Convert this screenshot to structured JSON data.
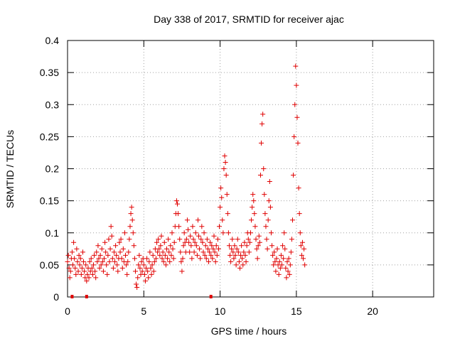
{
  "chart_data": {
    "type": "scatter",
    "title": "Day 338 of 2017, SRMTID for receiver ajac",
    "xlabel": "GPS time / hours",
    "ylabel": "SRMTID / TECUs",
    "xlim": [
      0,
      24
    ],
    "ylim": [
      0,
      0.4
    ],
    "x_ticks": [
      0,
      5,
      10,
      15,
      20
    ],
    "x_tick_labels": [
      "0",
      "5",
      "10",
      "15",
      "20"
    ],
    "y_ticks": [
      0,
      0.05,
      0.1,
      0.15,
      0.2,
      0.25,
      0.3,
      0.35,
      0.4
    ],
    "y_tick_labels": [
      "0",
      "0.05",
      "0.1",
      "0.15",
      "0.2",
      "0.25",
      "0.3",
      "0.35",
      "0.4"
    ],
    "grid": true,
    "marker": "plus",
    "color": "#e00000",
    "series": [
      {
        "name": "SRMTID",
        "points": [
          [
            0.0,
            0.055
          ],
          [
            0.05,
            0.065
          ],
          [
            0.1,
            0.045
          ],
          [
            0.15,
            0.03
          ],
          [
            0.2,
            0.04
          ],
          [
            0.25,
            0.06
          ],
          [
            0.3,
            0.07
          ],
          [
            0.35,
            0.05
          ],
          [
            0.4,
            0.085
          ],
          [
            0.45,
            0.06
          ],
          [
            0.5,
            0.045
          ],
          [
            0.55,
            0.035
          ],
          [
            0.6,
            0.075
          ],
          [
            0.65,
            0.055
          ],
          [
            0.7,
            0.04
          ],
          [
            0.75,
            0.065
          ],
          [
            0.8,
            0.05
          ],
          [
            0.85,
            0.06
          ],
          [
            0.9,
            0.035
          ],
          [
            0.95,
            0.045
          ],
          [
            1.0,
            0.07
          ],
          [
            1.05,
            0.055
          ],
          [
            1.1,
            0.04
          ],
          [
            1.15,
            0.03
          ],
          [
            1.2,
            0.05
          ],
          [
            1.25,
            0.025
          ],
          [
            1.3,
            0.035
          ],
          [
            1.35,
            0.045
          ],
          [
            1.4,
            0.03
          ],
          [
            1.45,
            0.055
          ],
          [
            1.5,
            0.04
          ],
          [
            1.55,
            0.06
          ],
          [
            1.6,
            0.045
          ],
          [
            1.65,
            0.035
          ],
          [
            1.7,
            0.05
          ],
          [
            1.75,
            0.065
          ],
          [
            1.8,
            0.04
          ],
          [
            1.85,
            0.03
          ],
          [
            1.9,
            0.07
          ],
          [
            1.95,
            0.055
          ],
          [
            2.0,
            0.08
          ],
          [
            2.05,
            0.06
          ],
          [
            2.1,
            0.045
          ],
          [
            2.15,
            0.065
          ],
          [
            2.2,
            0.05
          ],
          [
            2.25,
            0.075
          ],
          [
            2.3,
            0.055
          ],
          [
            2.35,
            0.04
          ],
          [
            2.4,
            0.06
          ],
          [
            2.45,
            0.085
          ],
          [
            2.5,
            0.07
          ],
          [
            2.55,
            0.05
          ],
          [
            2.6,
            0.035
          ],
          [
            2.65,
            0.065
          ],
          [
            2.7,
            0.09
          ],
          [
            2.75,
            0.055
          ],
          [
            2.8,
            0.075
          ],
          [
            2.85,
            0.11
          ],
          [
            2.9,
            0.095
          ],
          [
            2.95,
            0.06
          ],
          [
            3.0,
            0.045
          ],
          [
            3.05,
            0.07
          ],
          [
            3.1,
            0.055
          ],
          [
            3.15,
            0.08
          ],
          [
            3.2,
            0.065
          ],
          [
            3.25,
            0.05
          ],
          [
            3.3,
            0.04
          ],
          [
            3.35,
            0.06
          ],
          [
            3.4,
            0.085
          ],
          [
            3.45,
            0.07
          ],
          [
            3.5,
            0.09
          ],
          [
            3.55,
            0.06
          ],
          [
            3.6,
            0.045
          ],
          [
            3.65,
            0.075
          ],
          [
            3.7,
            0.055
          ],
          [
            3.75,
            0.1
          ],
          [
            3.8,
            0.065
          ],
          [
            3.85,
            0.05
          ],
          [
            3.9,
            0.035
          ],
          [
            3.95,
            0.055
          ],
          [
            4.0,
            0.07
          ],
          [
            4.05,
            0.09
          ],
          [
            4.1,
            0.11
          ],
          [
            4.15,
            0.13
          ],
          [
            4.2,
            0.14
          ],
          [
            4.25,
            0.12
          ],
          [
            4.3,
            0.1
          ],
          [
            4.35,
            0.08
          ],
          [
            4.4,
            0.06
          ],
          [
            4.45,
            0.04
          ],
          [
            4.5,
            0.02
          ],
          [
            4.55,
            0.015
          ],
          [
            4.6,
            0.03
          ],
          [
            4.65,
            0.05
          ],
          [
            4.7,
            0.065
          ],
          [
            4.75,
            0.045
          ],
          [
            4.8,
            0.035
          ],
          [
            4.85,
            0.055
          ],
          [
            4.9,
            0.04
          ],
          [
            4.95,
            0.06
          ],
          [
            5.0,
            0.05
          ],
          [
            5.05,
            0.035
          ],
          [
            5.1,
            0.025
          ],
          [
            5.15,
            0.045
          ],
          [
            5.2,
            0.06
          ],
          [
            5.25,
            0.04
          ],
          [
            5.3,
            0.03
          ],
          [
            5.35,
            0.055
          ],
          [
            5.4,
            0.07
          ],
          [
            5.45,
            0.045
          ],
          [
            5.5,
            0.035
          ],
          [
            5.55,
            0.05
          ],
          [
            5.6,
            0.065
          ],
          [
            5.65,
            0.04
          ],
          [
            5.7,
            0.055
          ],
          [
            5.75,
            0.075
          ],
          [
            5.8,
            0.06
          ],
          [
            5.85,
            0.085
          ],
          [
            5.9,
            0.07
          ],
          [
            5.95,
            0.09
          ],
          [
            6.0,
            0.075
          ],
          [
            6.05,
            0.065
          ],
          [
            6.1,
            0.08
          ],
          [
            6.15,
            0.095
          ],
          [
            6.2,
            0.06
          ],
          [
            6.25,
            0.07
          ],
          [
            6.3,
            0.055
          ],
          [
            6.35,
            0.085
          ],
          [
            6.4,
            0.065
          ],
          [
            6.45,
            0.05
          ],
          [
            6.5,
            0.075
          ],
          [
            6.55,
            0.06
          ],
          [
            6.6,
            0.09
          ],
          [
            6.65,
            0.07
          ],
          [
            6.7,
            0.055
          ],
          [
            6.75,
            0.08
          ],
          [
            6.8,
            0.065
          ],
          [
            6.85,
            0.1
          ],
          [
            6.9,
            0.075
          ],
          [
            6.95,
            0.06
          ],
          [
            7.0,
            0.085
          ],
          [
            7.05,
            0.11
          ],
          [
            7.1,
            0.13
          ],
          [
            7.15,
            0.15
          ],
          [
            7.2,
            0.145
          ],
          [
            7.25,
            0.13
          ],
          [
            7.3,
            0.11
          ],
          [
            7.35,
            0.09
          ],
          [
            7.4,
            0.07
          ],
          [
            7.45,
            0.055
          ],
          [
            7.5,
            0.04
          ],
          [
            7.55,
            0.06
          ],
          [
            7.6,
            0.08
          ],
          [
            7.65,
            0.1
          ],
          [
            7.7,
            0.085
          ],
          [
            7.75,
            0.07
          ],
          [
            7.8,
            0.09
          ],
          [
            7.85,
            0.12
          ],
          [
            7.9,
            0.105
          ],
          [
            7.95,
            0.085
          ],
          [
            8.0,
            0.07
          ],
          [
            8.05,
            0.095
          ],
          [
            8.1,
            0.08
          ],
          [
            8.15,
            0.06
          ],
          [
            8.2,
            0.11
          ],
          [
            8.25,
            0.09
          ],
          [
            8.3,
            0.07
          ],
          [
            8.35,
            0.085
          ],
          [
            8.4,
            0.1
          ],
          [
            8.45,
            0.08
          ],
          [
            8.5,
            0.065
          ],
          [
            8.55,
            0.12
          ],
          [
            8.6,
            0.095
          ],
          [
            8.65,
            0.075
          ],
          [
            8.7,
            0.06
          ],
          [
            8.75,
            0.09
          ],
          [
            8.8,
            0.11
          ],
          [
            8.85,
            0.085
          ],
          [
            8.9,
            0.07
          ],
          [
            8.95,
            0.1
          ],
          [
            9.0,
            0.065
          ],
          [
            9.05,
            0.08
          ],
          [
            9.1,
            0.06
          ],
          [
            9.15,
            0.09
          ],
          [
            9.2,
            0.075
          ],
          [
            9.25,
            0.055
          ],
          [
            9.3,
            0.07
          ],
          [
            9.35,
            0.085
          ],
          [
            9.4,
            0.065
          ],
          [
            9.45,
            0.08
          ],
          [
            9.5,
            0.06
          ],
          [
            9.55,
            0.075
          ],
          [
            9.6,
            0.095
          ],
          [
            9.65,
            0.07
          ],
          [
            9.7,
            0.055
          ],
          [
            9.75,
            0.08
          ],
          [
            9.8,
            0.065
          ],
          [
            9.85,
            0.09
          ],
          [
            9.9,
            0.075
          ],
          [
            9.95,
            0.11
          ],
          [
            10.0,
            0.14
          ],
          [
            10.05,
            0.17
          ],
          [
            10.1,
            0.155
          ],
          [
            10.15,
            0.12
          ],
          [
            10.2,
            0.1
          ],
          [
            10.25,
            0.2
          ],
          [
            10.3,
            0.22
          ],
          [
            10.35,
            0.21
          ],
          [
            10.4,
            0.19
          ],
          [
            10.45,
            0.16
          ],
          [
            10.5,
            0.13
          ],
          [
            10.55,
            0.1
          ],
          [
            10.6,
            0.08
          ],
          [
            10.65,
            0.065
          ],
          [
            10.7,
            0.055
          ],
          [
            10.75,
            0.075
          ],
          [
            10.8,
            0.09
          ],
          [
            10.85,
            0.07
          ],
          [
            10.9,
            0.06
          ],
          [
            10.95,
            0.08
          ],
          [
            11.0,
            0.065
          ],
          [
            11.05,
            0.05
          ],
          [
            11.1,
            0.075
          ],
          [
            11.15,
            0.09
          ],
          [
            11.2,
            0.07
          ],
          [
            11.25,
            0.055
          ],
          [
            11.3,
            0.045
          ],
          [
            11.35,
            0.065
          ],
          [
            11.4,
            0.08
          ],
          [
            11.45,
            0.06
          ],
          [
            11.5,
            0.05
          ],
          [
            11.55,
            0.07
          ],
          [
            11.6,
            0.085
          ],
          [
            11.65,
            0.065
          ],
          [
            11.7,
            0.055
          ],
          [
            11.75,
            0.08
          ],
          [
            11.8,
            0.1
          ],
          [
            11.85,
            0.09
          ],
          [
            11.9,
            0.07
          ],
          [
            11.95,
            0.085
          ],
          [
            12.0,
            0.1
          ],
          [
            12.05,
            0.12
          ],
          [
            12.1,
            0.14
          ],
          [
            12.15,
            0.16
          ],
          [
            12.2,
            0.15
          ],
          [
            12.25,
            0.13
          ],
          [
            12.3,
            0.11
          ],
          [
            12.35,
            0.09
          ],
          [
            12.4,
            0.075
          ],
          [
            12.45,
            0.06
          ],
          [
            12.5,
            0.08
          ],
          [
            12.55,
            0.095
          ],
          [
            12.6,
            0.085
          ],
          [
            12.65,
            0.19
          ],
          [
            12.7,
            0.24
          ],
          [
            12.75,
            0.27
          ],
          [
            12.8,
            0.285
          ],
          [
            12.85,
            0.2
          ],
          [
            12.9,
            0.16
          ],
          [
            12.95,
            0.13
          ],
          [
            13.0,
            0.11
          ],
          [
            13.05,
            0.09
          ],
          [
            13.1,
            0.075
          ],
          [
            13.15,
            0.12
          ],
          [
            13.2,
            0.15
          ],
          [
            13.25,
            0.18
          ],
          [
            13.3,
            0.14
          ],
          [
            13.35,
            0.1
          ],
          [
            13.4,
            0.08
          ],
          [
            13.45,
            0.065
          ],
          [
            13.5,
            0.05
          ],
          [
            13.55,
            0.07
          ],
          [
            13.6,
            0.055
          ],
          [
            13.65,
            0.04
          ],
          [
            13.7,
            0.06
          ],
          [
            13.75,
            0.075
          ],
          [
            13.8,
            0.05
          ],
          [
            13.85,
            0.035
          ],
          [
            13.9,
            0.055
          ],
          [
            13.95,
            0.045
          ],
          [
            14.0,
            0.065
          ],
          [
            14.05,
            0.05
          ],
          [
            14.1,
            0.08
          ],
          [
            14.15,
            0.06
          ],
          [
            14.2,
            0.1
          ],
          [
            14.25,
            0.075
          ],
          [
            14.3,
            0.045
          ],
          [
            14.35,
            0.03
          ],
          [
            14.4,
            0.055
          ],
          [
            14.45,
            0.04
          ],
          [
            14.5,
            0.06
          ],
          [
            14.55,
            0.035
          ],
          [
            14.6,
            0.05
          ],
          [
            14.65,
            0.07
          ],
          [
            14.7,
            0.09
          ],
          [
            14.75,
            0.12
          ],
          [
            14.8,
            0.19
          ],
          [
            14.85,
            0.25
          ],
          [
            14.9,
            0.3
          ],
          [
            14.95,
            0.36
          ],
          [
            15.0,
            0.33
          ],
          [
            15.05,
            0.28
          ],
          [
            15.1,
            0.24
          ],
          [
            15.15,
            0.17
          ],
          [
            15.2,
            0.13
          ],
          [
            15.25,
            0.1
          ],
          [
            15.3,
            0.08
          ],
          [
            15.35,
            0.065
          ],
          [
            15.4,
            0.085
          ],
          [
            15.45,
            0.06
          ],
          [
            15.5,
            0.075
          ],
          [
            15.55,
            0.05
          ]
        ]
      }
    ],
    "zero_markers_x": [
      0.3,
      1.25,
      9.4
    ]
  }
}
